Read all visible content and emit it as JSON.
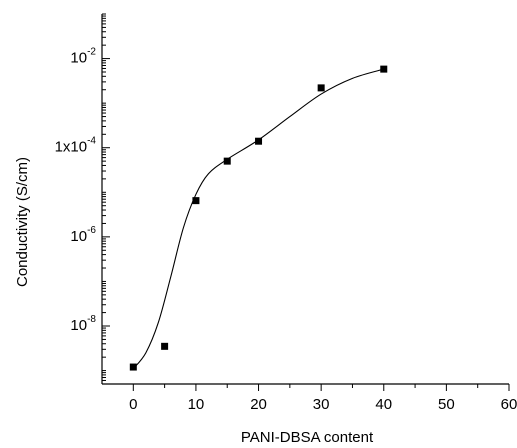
{
  "chart_data": {
    "type": "scatter",
    "xlabel": "PANI-DBSA content",
    "ylabel": "Conductivity (S/cm)",
    "xlim": [
      -5,
      60
    ],
    "ylim": [
      5e-10,
      0.1
    ],
    "yscale": "log",
    "x_ticks": [
      0,
      10,
      20,
      30,
      40,
      50,
      60
    ],
    "y_ticks": [
      {
        "value": 1e-08,
        "base": "10",
        "exp": "-8"
      },
      {
        "value": 1e-06,
        "base": "10",
        "exp": "-6"
      },
      {
        "value": 0.0001,
        "base": "1x10",
        "exp": "-4"
      },
      {
        "value": 0.01,
        "base": "10",
        "exp": "-2"
      }
    ],
    "series": [
      {
        "marker": "square",
        "color": "#000000",
        "x": [
          0,
          5,
          10,
          15,
          20,
          30,
          40
        ],
        "y": [
          1.2e-09,
          3.5e-09,
          6.5e-06,
          5e-05,
          0.00014,
          0.0022,
          0.0058
        ]
      }
    ],
    "fit_curve": {
      "x": [
        0,
        2,
        4,
        6,
        8,
        10,
        12,
        15,
        20,
        25,
        30,
        35,
        40
      ],
      "y": [
        1.1e-09,
        2.5e-09,
        1.2e-08,
        1.3e-07,
        1.6e-06,
        9e-06,
        2.6e-05,
        5.5e-05,
        0.00015,
        0.0005,
        0.0016,
        0.0036,
        0.0058
      ]
    }
  }
}
